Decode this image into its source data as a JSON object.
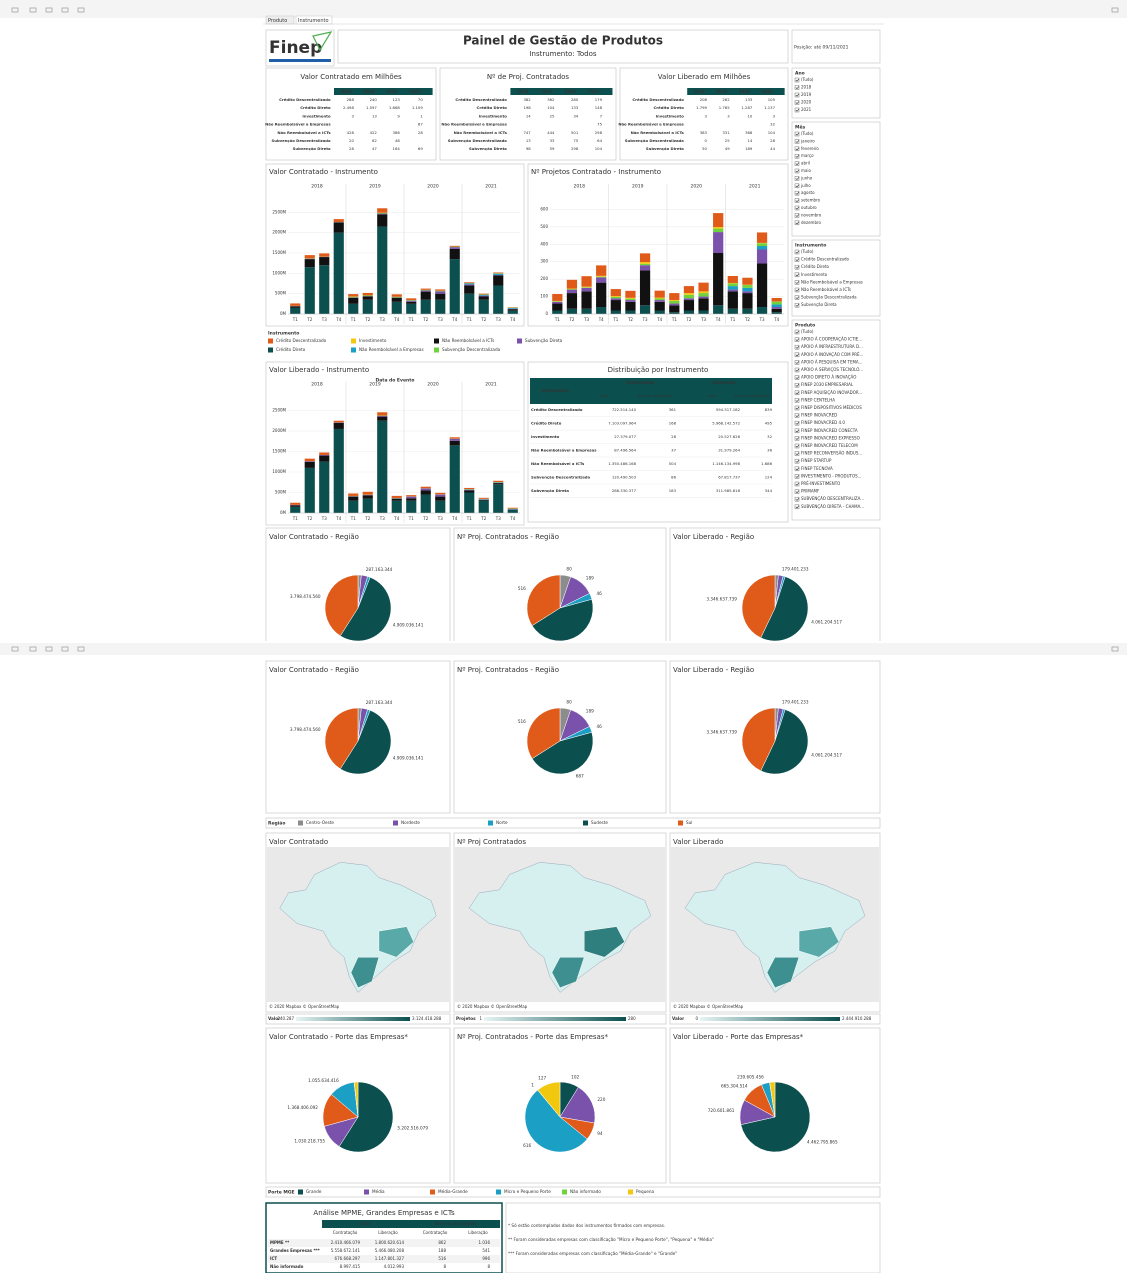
{
  "tabs": [
    "Produto",
    "Instrumento"
  ],
  "header": {
    "logo": "Finep",
    "title": "Painel de Gestão de Produtos",
    "subtitle": "Instrumento: Todos",
    "position": "Posição: até 09/11/2021"
  },
  "summary_tables": [
    {
      "title": "Valor Contratado em Milhões",
      "columns": [
        "2018",
        "2019",
        "2020",
        "2021"
      ],
      "rows": [
        {
          "label": "Crédito Descentralizado",
          "cells": [
            "288",
            "240",
            "123",
            "70"
          ]
        },
        {
          "label": "Crédito Direto",
          "cells": [
            "2.498",
            "1.597",
            "1.868",
            "1.109"
          ]
        },
        {
          "label": "Investimento",
          "cells": [
            "3",
            "13",
            "9",
            "1"
          ]
        },
        {
          "label": "Não Reembolsável a Empresas",
          "cells": [
            null,
            null,
            null,
            "87"
          ]
        },
        {
          "label": "Não Reembolsável a ICTs",
          "cells": [
            "428",
            "422",
            "386",
            "28"
          ]
        },
        {
          "label": "Subvenção Descentralizada",
          "cells": [
            "20",
            "62",
            "48",
            null
          ]
        },
        {
          "label": "Subvenção Direta",
          "cells": [
            "28",
            "47",
            "164",
            "69"
          ]
        }
      ]
    },
    {
      "title": "Nº de Proj. Contratados",
      "columns": [
        "2018",
        "2019",
        "2020",
        "2021"
      ],
      "rows": [
        {
          "label": "Crédito Descentralizado",
          "cells": [
            "382",
            "362",
            "280",
            "179"
          ]
        },
        {
          "label": "Crédito Direto",
          "cells": [
            "198",
            "104",
            "133",
            "148"
          ]
        },
        {
          "label": "Investimento",
          "cells": [
            "14",
            "25",
            "34",
            "7"
          ]
        },
        {
          "label": "Não Reembolsável a Empresas",
          "cells": [
            null,
            null,
            null,
            "75"
          ]
        },
        {
          "label": "Não Reembolsável a ICTs",
          "cells": [
            "747",
            "444",
            "501",
            "298"
          ]
        },
        {
          "label": "Subvenção Descentralizada",
          "cells": [
            "13",
            "33",
            "75",
            "64"
          ]
        },
        {
          "label": "Subvenção Direta",
          "cells": [
            "98",
            "59",
            "298",
            "104"
          ]
        }
      ]
    },
    {
      "title": "Valor Liberado em Milhões",
      "columns": [
        "2018",
        "2019",
        "2020",
        "2021"
      ],
      "rows": [
        {
          "label": "Crédito Descentralizado",
          "cells": [
            "208",
            "262",
            "133",
            "105"
          ]
        },
        {
          "label": "Crédito Direto",
          "cells": [
            "1.799",
            "1.765",
            "1.287",
            "1.137"
          ]
        },
        {
          "label": "Investimento",
          "cells": [
            "3",
            "3",
            "10",
            "3"
          ]
        },
        {
          "label": "Não Reembolsável a Empresas",
          "cells": [
            null,
            null,
            null,
            "32"
          ]
        },
        {
          "label": "Não Reembolsável a ICTs",
          "cells": [
            "383",
            "331",
            "368",
            "104"
          ]
        },
        {
          "label": "Subvenção Descentralizada",
          "cells": [
            "0",
            "25",
            "14",
            "28"
          ]
        },
        {
          "label": "Subvenção Direta",
          "cells": [
            "50",
            "49",
            "189",
            "44"
          ]
        }
      ]
    }
  ],
  "filters": [
    {
      "title": "Ano",
      "options": [
        "(Tudo)",
        "2018",
        "2019",
        "2020",
        "2021"
      ]
    },
    {
      "title": "Mês",
      "options": [
        "(Tudo)",
        "janeiro",
        "fevereiro",
        "março",
        "abril",
        "maio",
        "junho",
        "julho",
        "agosto",
        "setembro",
        "outubro",
        "novembro",
        "dezembro"
      ]
    },
    {
      "title": "Instrumento",
      "options": [
        "(Tudo)",
        "Crédito Descentralizado",
        "Crédito Direto",
        "Investimento",
        "Não Reembolsável a Empresas",
        "Não Reembolsável a ICTs",
        "Subvenção Descentralizada",
        "Subvenção Direta"
      ]
    },
    {
      "title": "Produto",
      "options": [
        "(Tudo)",
        "APOIO À COOPERAÇÃO ICTIE...",
        "APOIO À INFRAESTRUTURA D...",
        "APOIO À INOVAÇÃO COM PRÉ...",
        "APOIO À PESQUISA EM TEMA...",
        "APOIO A SERVIÇOS TECNOLÓ...",
        "APOIO DIRETO À INOVAÇÃO",
        "FINEP 2030 EMPRESARIAL",
        "FINEP AQUISIÇÃO INOVADOR...",
        "FINEP CENTELHA",
        "FINEP DISPOSITIVOS MÉDICOS",
        "FINEP INOVACRED",
        "FINEP INOVACRED 4.0",
        "FINEP INOVACRED CONECTA",
        "FINEP INOVACRED EXPRESSO",
        "FINEP INOVACRED TELECOM",
        "FINEP RECONVERSÃO INDUS...",
        "FINEP STARTUP",
        "FINEP TECNOVA",
        "INVESTIMENTO - PRODUTOS...",
        "PRÉ-INVESTIMENTO",
        "PRIMAMF",
        "SUBVENÇÃO DESCENTRALIZA...",
        "SUBVENÇÃO DIRETA - CHAMA..."
      ]
    }
  ],
  "instrument_legend": {
    "title": "Instrumento",
    "names": [
      "Crédito Descentralizado",
      "Crédito Direto",
      "Investimento",
      "Não Reembolsável a Empresas",
      "Não Reembolsável a ICTs",
      "Subvenção Descentralizada",
      "Subvenção Direta"
    ],
    "colors": [
      "#e05a1a",
      "#0b4f4f",
      "#f2c80f",
      "#1b9fc4",
      "#111111",
      "#6fd13c",
      "#7b52ab"
    ]
  },
  "years": [
    "2018",
    "2019",
    "2020",
    "2021"
  ],
  "quarters": [
    "T1",
    "T2",
    "T3",
    "T4"
  ],
  "bar_charts": [
    {
      "type": "bar",
      "title": "Valor Contratado - Instrumento",
      "ylim": [
        0,
        3000
      ],
      "yticks": [
        {
          "value": 0,
          "label": "0M"
        },
        {
          "value": 500,
          "label": "500M"
        },
        {
          "value": 1000,
          "label": "1000M"
        },
        {
          "value": 1500,
          "label": "1500M"
        },
        {
          "value": 2000,
          "label": "2000M"
        },
        {
          "value": 2500,
          "label": "2500M"
        }
      ],
      "series_values": [
        [
          60,
          80,
          80,
          70,
          60,
          60,
          110,
          60,
          40,
          30,
          30,
          20,
          20,
          20,
          20,
          10
        ],
        [
          150,
          1150,
          1200,
          2000,
          250,
          350,
          2150,
          300,
          250,
          350,
          350,
          1350,
          500,
          350,
          700,
          80
        ],
        [
          0,
          3,
          0,
          0,
          5,
          3,
          5,
          0,
          3,
          3,
          3,
          0,
          0,
          0,
          1,
          0
        ],
        [
          0,
          0,
          0,
          0,
          0,
          0,
          0,
          0,
          0,
          0,
          0,
          0,
          20,
          20,
          30,
          17
        ],
        [
          40,
          200,
          200,
          250,
          150,
          80,
          300,
          100,
          50,
          200,
          150,
          250,
          200,
          80,
          250,
          40
        ],
        [
          5,
          5,
          5,
          5,
          15,
          15,
          15,
          17,
          12,
          12,
          12,
          12,
          10,
          10,
          10,
          10
        ],
        [
          5,
          10,
          5,
          8,
          10,
          10,
          20,
          7,
          30,
          30,
          60,
          44,
          30,
          20,
          10,
          9
        ]
      ]
    },
    {
      "type": "bar",
      "title": "Nº Projetos Contratado - Instrumento",
      "ylim": [
        0,
        700
      ],
      "yticks": [
        0,
        100,
        200,
        300,
        400,
        500,
        600
      ],
      "series_values": [
        [
          40,
          50,
          60,
          60,
          40,
          40,
          50,
          40,
          40,
          40,
          50,
          80,
          40,
          40,
          60,
          20
        ],
        [
          20,
          30,
          30,
          40,
          20,
          20,
          50,
          20,
          10,
          20,
          20,
          50,
          30,
          30,
          40,
          10
        ],
        [
          2,
          3,
          4,
          5,
          5,
          5,
          10,
          5,
          5,
          10,
          10,
          9,
          2,
          2,
          2,
          1
        ],
        [
          0,
          0,
          0,
          0,
          0,
          0,
          0,
          0,
          0,
          0,
          0,
          0,
          20,
          20,
          20,
          15
        ],
        [
          40,
          90,
          100,
          140,
          60,
          50,
          200,
          50,
          40,
          60,
          70,
          300,
          100,
          90,
          250,
          20
        ],
        [
          3,
          3,
          3,
          4,
          8,
          8,
          8,
          9,
          15,
          20,
          20,
          20,
          16,
          16,
          16,
          16
        ],
        [
          10,
          20,
          20,
          30,
          10,
          10,
          30,
          10,
          10,
          10,
          10,
          120,
          10,
          10,
          80,
          10
        ]
      ]
    },
    {
      "type": "bar",
      "title": "Valor Liberado - Instrumento",
      "axis_title": "Data do Evento",
      "ylim": [
        0,
        3000
      ],
      "yticks": [
        {
          "value": 0,
          "label": "0M"
        },
        {
          "value": 500,
          "label": "500M"
        },
        {
          "value": 1000,
          "label": "1000M"
        },
        {
          "value": 1500,
          "label": "1500M"
        },
        {
          "value": 2000,
          "label": "2000M"
        },
        {
          "value": 2500,
          "label": "2500M"
        }
      ],
      "series_values": [
        [
          50,
          60,
          60,
          40,
          60,
          70,
          80,
          50,
          30,
          35,
          35,
          33,
          30,
          25,
          30,
          20
        ],
        [
          150,
          1100,
          1250,
          2050,
          300,
          350,
          2250,
          300,
          300,
          450,
          300,
          1650,
          500,
          300,
          700,
          80
        ],
        [
          0,
          1,
          1,
          1,
          1,
          1,
          1,
          0,
          3,
          3,
          3,
          1,
          1,
          1,
          1,
          0
        ],
        [
          0,
          0,
          0,
          0,
          0,
          0,
          0,
          0,
          0,
          0,
          0,
          0,
          8,
          8,
          8,
          8
        ],
        [
          40,
          150,
          150,
          150,
          100,
          80,
          100,
          50,
          60,
          100,
          100,
          110,
          50,
          20,
          30,
          4
        ],
        [
          0,
          0,
          0,
          0,
          5,
          6,
          7,
          7,
          3,
          3,
          4,
          4,
          7,
          7,
          7,
          7
        ],
        [
          10,
          15,
          15,
          10,
          10,
          10,
          19,
          10,
          40,
          50,
          50,
          49,
          15,
          10,
          10,
          9
        ]
      ]
    }
  ],
  "distribution": {
    "title": "Distribuição por Instrumento",
    "group_headers": [
      "Contratação",
      "Liberação"
    ],
    "columns": [
      "Instrumento",
      "Valor",
      "Número de projetos",
      "Valor",
      "Número de projetos"
    ],
    "rows": [
      [
        "Crédito Descentralizado",
        "722.514.140",
        "361",
        "594.317.182",
        "839"
      ],
      [
        "Crédito Direto",
        "7.103.097.964",
        "168",
        "5.968.142.572",
        "495"
      ],
      [
        "Investimento",
        "27.379.077",
        "28",
        "20.527.626",
        "32"
      ],
      [
        "Não Reembolsável a Empresas",
        "87.496.564",
        "37",
        "31.979.264",
        "36"
      ],
      [
        "Não Reembolsável a ICTs",
        "1.350.486.168",
        "504",
        "1.146.134.998",
        "1.686"
      ],
      [
        "Subvenção Descentralizada",
        "120.490.503",
        "86",
        "67.817.737",
        "124"
      ],
      [
        "Subvenção Direta",
        "288.330.377",
        "183",
        "311.985.616",
        "344"
      ]
    ]
  },
  "regions": {
    "title": "Região",
    "names": [
      "Centro-Oeste",
      "Nordeste",
      "Norte",
      "Sudeste",
      "Sul"
    ],
    "colors": [
      "#8c8c8c",
      "#7b52ab",
      "#1b9fc4",
      "#0b4f4f",
      "#e05a1a"
    ]
  },
  "region_pies": [
    {
      "type": "pie",
      "title": "Valor Contratado - Região",
      "values": [
        150000000,
        287163344,
        120000000,
        4909036141,
        3798474560
      ],
      "value_labels": [
        null,
        "287.163.344",
        null,
        "4.909.036.141",
        "3.798.474.560"
      ]
    },
    {
      "type": "pie",
      "title": "Nº Proj. Contratados - Região",
      "values": [
        80,
        189,
        46,
        687,
        516
      ]
    },
    {
      "type": "pie",
      "title": "Valor Liberado - Região",
      "values": [
        130000000,
        179401233,
        80000000,
        4061204517,
        3346637739
      ],
      "value_labels": [
        null,
        "179.401.233",
        null,
        "4.061.204.517",
        "3.346.637.739"
      ]
    }
  ],
  "maps": [
    {
      "title": "Valor Contratado",
      "legend_title": "Valor",
      "min_label": "240.287",
      "max_label": "3.124.418.288"
    },
    {
      "title": "Nº Proj Contratados",
      "legend_title": "Projetos",
      "min_label": "1",
      "max_label": "280"
    },
    {
      "title": "Valor Liberado",
      "legend_title": "Valor",
      "min_label": "0",
      "max_label": "2.444.910.288"
    }
  ],
  "map_credit": "© 2020 Mapbox © OpenStreetMap",
  "company_sizes": {
    "title": "Porte MGE",
    "names": [
      "Grande",
      "Média",
      "Média-Grande",
      "Micro e Pequeno Porte",
      "Não informado",
      "Pequena"
    ],
    "colors": [
      "#0b4f4f",
      "#7b52ab",
      "#e05a1a",
      "#1b9fc4",
      "#6fd13c",
      "#f2c80f"
    ]
  },
  "size_pies": [
    {
      "type": "pie",
      "title": "Valor Contratado - Porte das Empresas*",
      "values": [
        5202516079,
        1030218755,
        1368406092,
        1055634416,
        8000000,
        150000000
      ],
      "value_labels": [
        "5.202.516.079",
        "1.030.218.755",
        "1.368.406.092",
        "1.055.634.416",
        null,
        null
      ]
    },
    {
      "type": "pie",
      "title": "Nº Proj. Contratados - Porte das Empresas*",
      "values": [
        102,
        220,
        94,
        616,
        1,
        127
      ]
    },
    {
      "type": "pie",
      "title": "Valor Liberado - Porte das Empresas*",
      "values": [
        4462795865,
        720601861,
        665304514,
        239605456,
        5000000,
        150000000
      ],
      "value_labels": [
        "4.462.795.865",
        "720.601.861",
        "665.304.514",
        "239.605.456",
        null,
        null
      ]
    }
  ],
  "mpme": {
    "title": "Análise MPME, Grandes Empresas e ICTs",
    "group_headers": [
      "Valor",
      "Número de projetos"
    ],
    "sub_headers": [
      "Contratação",
      "Liberação",
      "Contratação",
      "Liberação"
    ],
    "rows": [
      [
        "MPME **",
        "2.410.466.079",
        "1.800.620.614",
        "862",
        "1.036"
      ],
      [
        "Grandes Empresas ***",
        "5.558.672.141",
        "5.466.080.208",
        "188",
        "541"
      ],
      [
        "ICT",
        "676.668.297",
        "1.147.801.327",
        "516",
        "996"
      ],
      [
        "Não informado",
        "8.997.415",
        "4.012.993",
        "8",
        "8"
      ]
    ]
  },
  "notes": [
    "* Só estão contemplados dados dos instrumentos firmados com empresas.",
    "** Foram consideradas empresas com classificação \"Micro e Pequeno Porte\", \"Pequena\" e \"Média\"",
    "*** Foram consideradas empresas com classificação \"Média-Grande\" e \"Grande\""
  ]
}
